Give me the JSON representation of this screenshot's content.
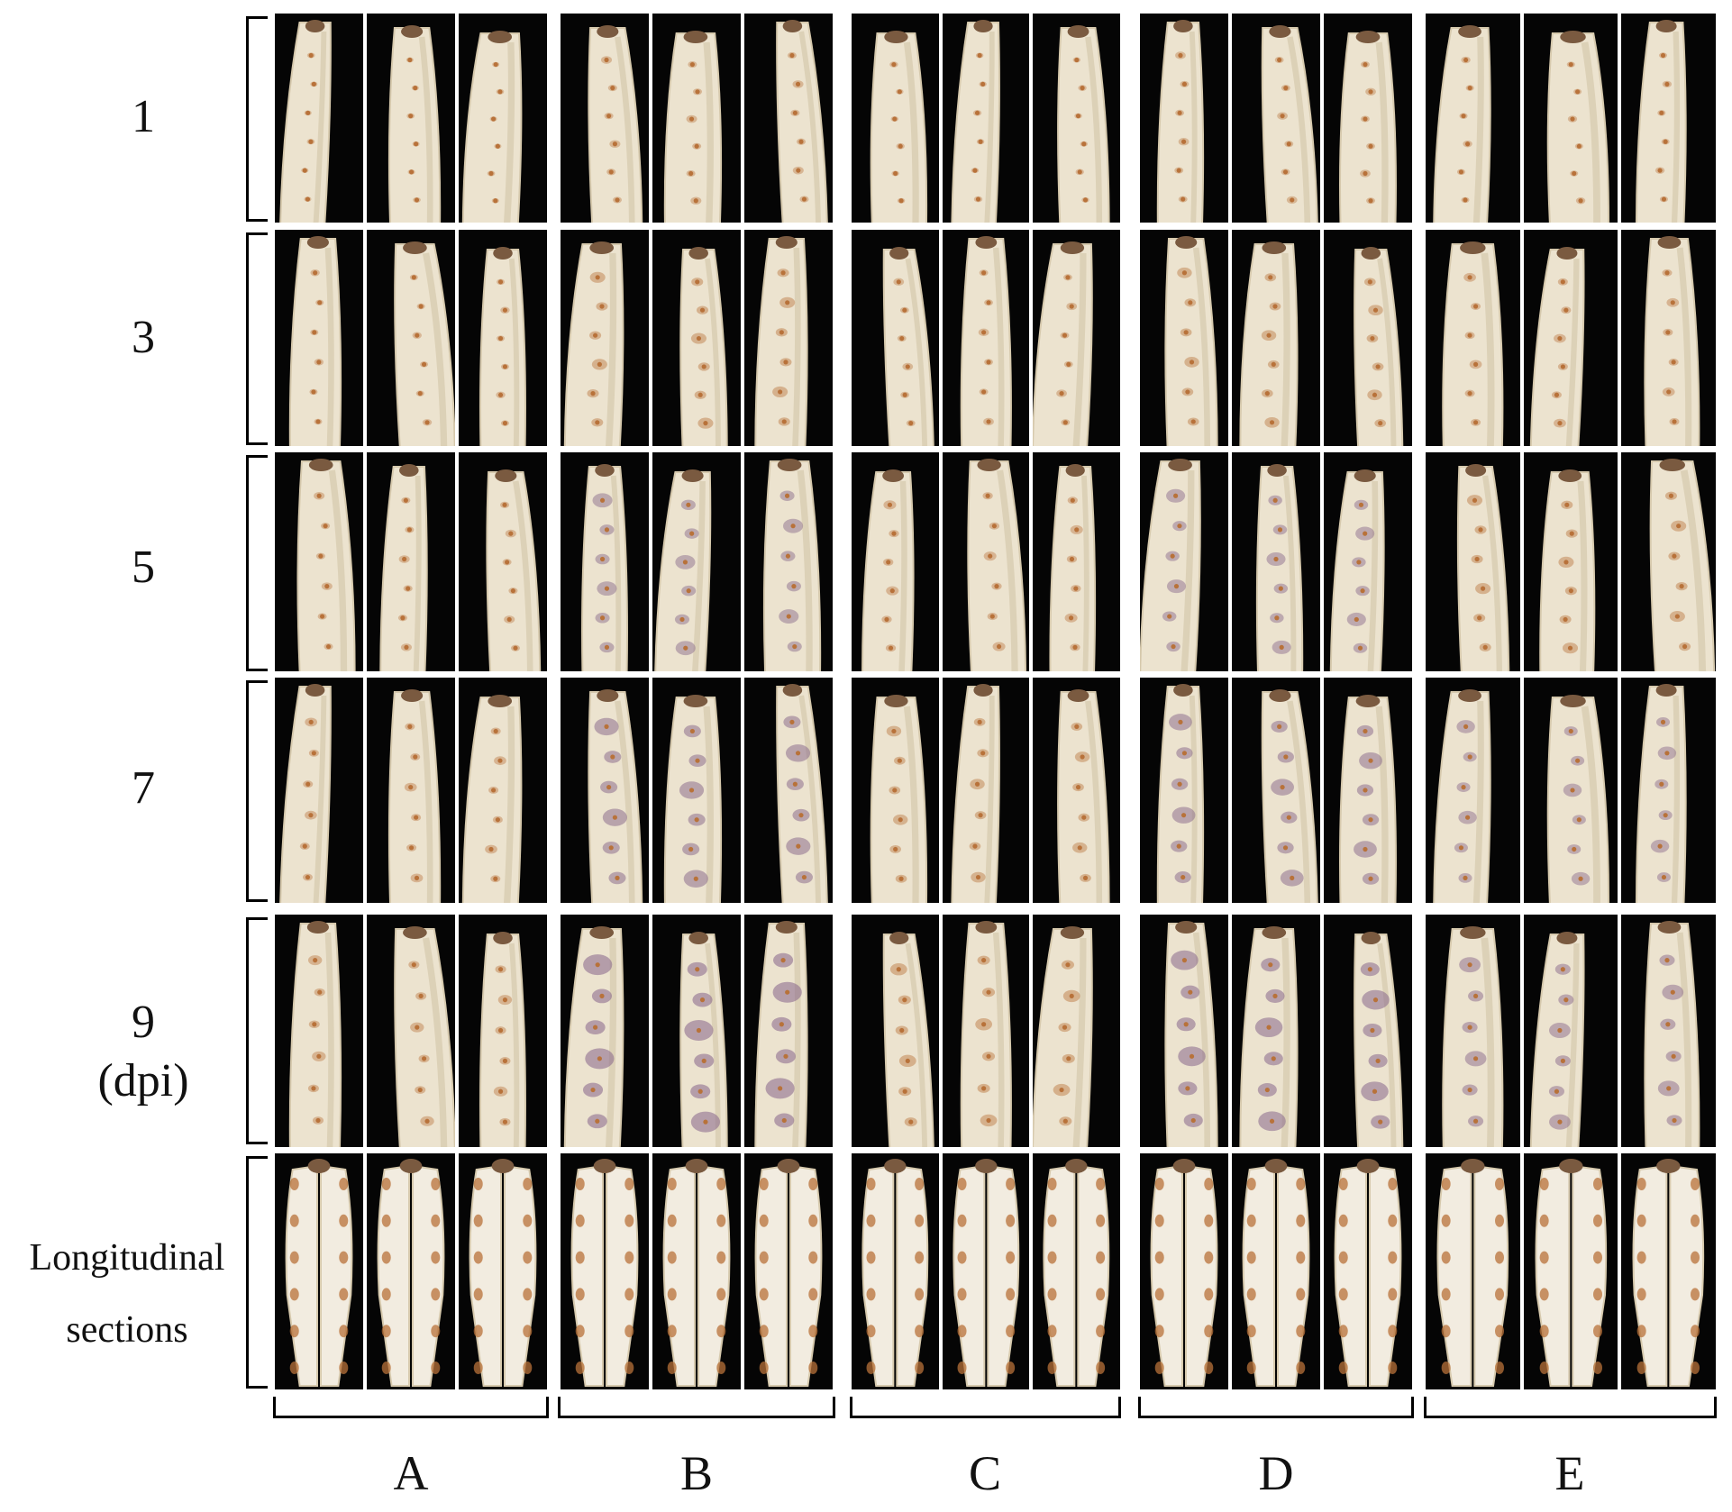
{
  "rows": [
    {
      "label": "1",
      "kind": "root"
    },
    {
      "label": "3",
      "kind": "root"
    },
    {
      "label": "5",
      "kind": "root"
    },
    {
      "label": "7",
      "kind": "root"
    },
    {
      "label": "9",
      "unit": "(dpi)",
      "kind": "root"
    },
    {
      "label_line1": "Longitudinal",
      "label_line2": "sections",
      "kind": "section"
    }
  ],
  "groups": [
    {
      "label": "A",
      "lesion_severity": 0.25
    },
    {
      "label": "B",
      "lesion_severity": 0.75
    },
    {
      "label": "C",
      "lesion_severity": 0.35
    },
    {
      "label": "D",
      "lesion_severity": 0.7
    },
    {
      "label": "E",
      "lesion_severity": 0.5
    }
  ],
  "samples_per_group": 3,
  "colors": {
    "background": "#050505",
    "root": "#ece3cf",
    "root_shade": "#d6c9ad",
    "lesion_early": "#b8723a",
    "lesion_late": "#8a6a8c",
    "crown": "#7a5a40"
  }
}
